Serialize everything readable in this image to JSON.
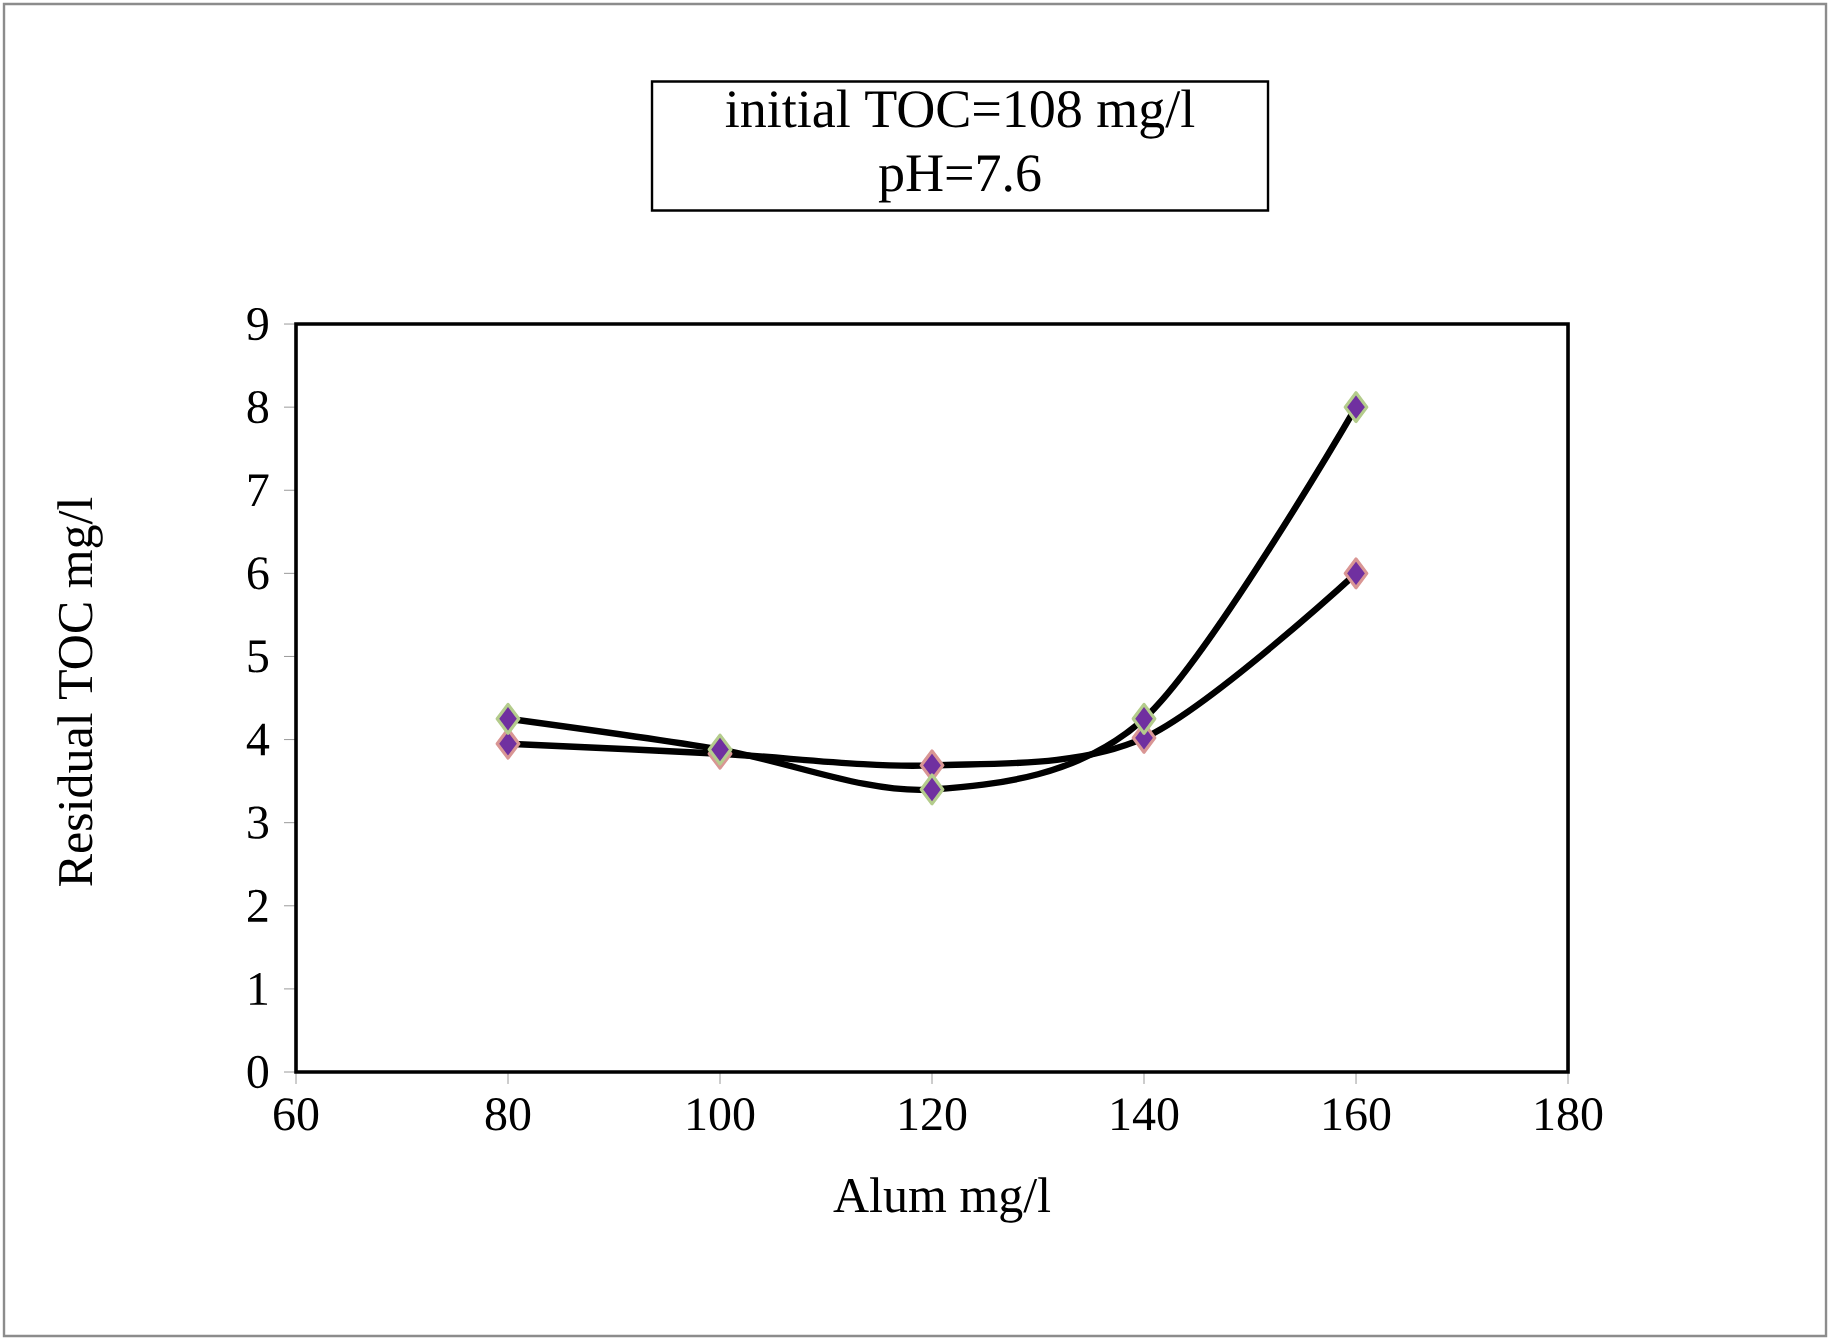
{
  "chart_data": {
    "type": "line",
    "title": "initial TOC=108 mg/l\npH=7.6",
    "xlabel": "Alum mg/l",
    "ylabel": "Residual TOC mg/l",
    "x": [
      80,
      100,
      120,
      140,
      160
    ],
    "series": [
      {
        "color": "#000000",
        "values": [
          4.25,
          3.88,
          3.4,
          4.25,
          8.0
        ]
      },
      {
        "color": "#000000",
        "values": [
          3.95,
          3.83,
          3.69,
          4.02,
          6.0
        ]
      }
    ],
    "xlim": [
      60,
      180
    ],
    "xticks": [
      60,
      80,
      100,
      120,
      140,
      160,
      180
    ],
    "ylim": [
      0,
      9
    ],
    "yticks": [
      0,
      1,
      2,
      3,
      4,
      5,
      6,
      7,
      8,
      9
    ],
    "grid": false,
    "marker": "diamond",
    "line_style": "solid"
  }
}
